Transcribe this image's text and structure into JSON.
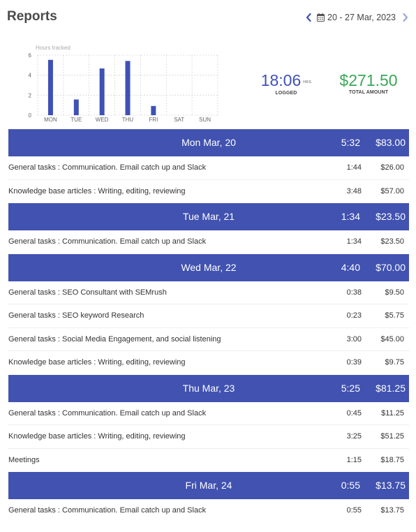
{
  "header": {
    "title": "Reports",
    "date_range": "20 - 27 Mar, 2023",
    "prev_icon": "chevron-left-icon",
    "next_icon": "chevron-right-icon",
    "calendar_icon": "calendar-icon"
  },
  "colors": {
    "bar": "#3f51b5",
    "header_bg": "#4152b0",
    "hours_value": "#3f51b5",
    "amount_value": "#3aa757",
    "nav_prev": "#3f51b5",
    "nav_next": "#9aa6d6"
  },
  "chart_data": {
    "type": "bar",
    "title": "Hours tracked",
    "categories": [
      "MON",
      "TUE",
      "WED",
      "THU",
      "FRI",
      "SAT",
      "SUN"
    ],
    "values": [
      5.53,
      1.57,
      4.67,
      5.42,
      0.92,
      0,
      0
    ],
    "yticks": [
      "0",
      "2",
      "4",
      "6"
    ],
    "ylim": [
      0,
      6
    ],
    "grid": true
  },
  "summary": {
    "hours_value": "18:06",
    "hours_unit": "HRS",
    "hours_caption": "LOGGED",
    "amount_value": "$271.50",
    "amount_caption": "TOTAL AMOUNT"
  },
  "days": [
    {
      "label": "Mon Mar, 20",
      "time": "5:32",
      "amount": "$83.00",
      "entries": [
        {
          "label": "General tasks : Communication. Email catch up and Slack",
          "time": "1:44",
          "amount": "$26.00"
        },
        {
          "label": "Knowledge base articles : Writing, editing, reviewing",
          "time": "3:48",
          "amount": "$57.00"
        }
      ]
    },
    {
      "label": "Tue Mar, 21",
      "time": "1:34",
      "amount": "$23.50",
      "entries": [
        {
          "label": "General tasks : Communication. Email catch up and Slack",
          "time": "1:34",
          "amount": "$23.50"
        }
      ]
    },
    {
      "label": "Wed Mar, 22",
      "time": "4:40",
      "amount": "$70.00",
      "entries": [
        {
          "label": "General tasks : SEO Consultant with SEMrush",
          "time": "0:38",
          "amount": "$9.50"
        },
        {
          "label": "General tasks : SEO keyword Research",
          "time": "0:23",
          "amount": "$5.75"
        },
        {
          "label": "General tasks : Social Media Engagement, and social listening",
          "time": "3:00",
          "amount": "$45.00"
        },
        {
          "label": "Knowledge base articles : Writing, editing, reviewing",
          "time": "0:39",
          "amount": "$9.75"
        }
      ]
    },
    {
      "label": "Thu Mar, 23",
      "time": "5:25",
      "amount": "$81.25",
      "entries": [
        {
          "label": "General tasks : Communication. Email catch up and Slack",
          "time": "0:45",
          "amount": "$11.25"
        },
        {
          "label": "Knowledge base articles : Writing, editing, reviewing",
          "time": "3:25",
          "amount": "$51.25"
        },
        {
          "label": "Meetings",
          "time": "1:15",
          "amount": "$18.75"
        }
      ]
    },
    {
      "label": "Fri Mar, 24",
      "time": "0:55",
      "amount": "$13.75",
      "entries": [
        {
          "label": "General tasks : Communication. Email catch up and Slack",
          "time": "0:55",
          "amount": "$13.75"
        }
      ]
    }
  ]
}
